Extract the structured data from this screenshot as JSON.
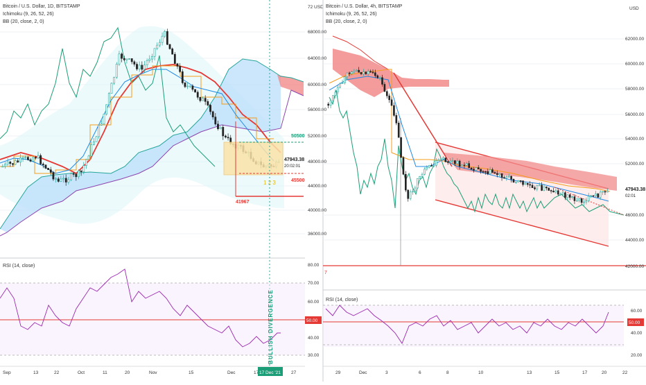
{
  "left_chart": {
    "legend": [
      "Bitcoin / U.S. Dollar, 1D, BITSTAMP",
      "Ichimoku (9, 26, 52, 26)",
      "BB (20, close, 2, 0)"
    ],
    "price_scale": [
      "72 USD",
      "68000.00",
      "64000.00",
      "60000.00",
      "56000.00",
      "52000.00",
      "48000.00",
      "44000.00",
      "40000.00",
      "36000.00"
    ],
    "current_price": "47943.38",
    "countdown": "20:02:01",
    "level_top": "50500",
    "level_mid": "45500",
    "level_low": "41967",
    "count_labels": "1 2 3",
    "divergence_text": "BULLISH DIVERGENCE",
    "date_highlight": "17 Dec '21",
    "x_ticks": [
      "Sep",
      "13",
      "22",
      "Oct",
      "11",
      "20",
      "Nov",
      "15",
      "Dec",
      "17",
      "27"
    ],
    "rsi_legend": "RSI (14, close)",
    "rsi_scale": [
      "80.00",
      "70.00",
      "60.00",
      "40.00",
      "30.00"
    ],
    "rsi_current": "50.00"
  },
  "right_chart": {
    "legend": [
      "Bitcoin / U.S. Dollar, 4h, BITSTAMP",
      "Ichimoku (9, 26, 52, 26)",
      "BB (20, close, 2, 0)"
    ],
    "price_scale": [
      "USD",
      "62000.00",
      "60000.00",
      "58000.00",
      "56000.00",
      "54000.00",
      "52000.00",
      "50000.00",
      "46000.00",
      "44000.00",
      "42000.00"
    ],
    "current_price": "47943.38",
    "countdown": "02:01",
    "left_edge_label": "7",
    "x_ticks": [
      "29",
      "Dec",
      "3",
      "6",
      "8",
      "10",
      "13",
      "15",
      "17",
      "20",
      "22"
    ],
    "rsi_legend": "RSI (14, close)",
    "rsi_scale": [
      "60.00",
      "40.00",
      "20.00"
    ],
    "rsi_current": "50.00"
  },
  "colors": {
    "up": "#26a69a",
    "down": "#222222",
    "red": "#e53935",
    "orange": "#f59c1a",
    "blue": "#1e88e5",
    "teal": "#1b9e77",
    "purple": "#9c27b0",
    "cloud_blue": "#bbdefb",
    "cloud_red": "#f28b8b"
  }
}
